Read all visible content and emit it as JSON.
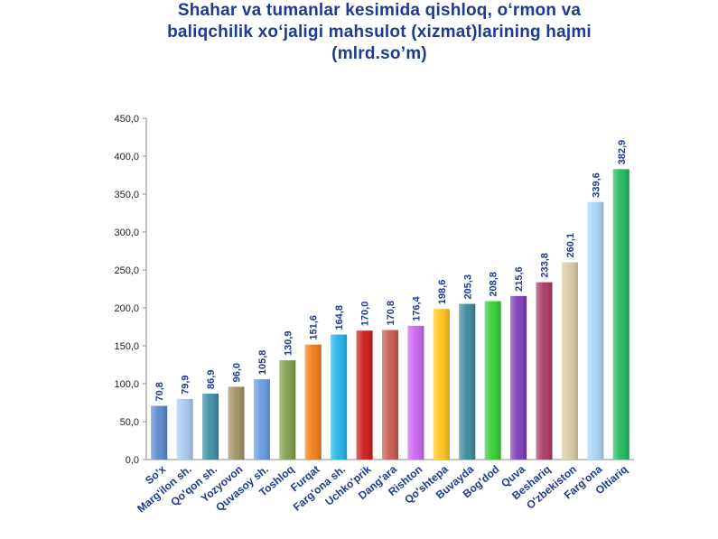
{
  "chart_data": {
    "type": "bar",
    "title_lines": [
      "Shahar va tumanlar kesimida qishloq, o‘rmon va",
      "baliqchilik xo‘jaligi mahsulot (xizmat)larining hajmi",
      "(mlrd.so’m)"
    ],
    "categories": [
      "So'x",
      "Marg'ilon sh.",
      "Qo'qon sh.",
      "Yozyovon",
      "Quvasoy sh.",
      "Toshloq",
      "Furqat",
      "Farg'ona sh.",
      "Uchko'prik",
      "Dang'ara",
      "Rishton",
      "Qo'shtepa",
      "Buvayda",
      "Bog'dod",
      "Quva",
      "Beshariq",
      "O'zbekiston",
      "Farg'ona",
      "Oltiariq"
    ],
    "values": [
      70.8,
      79.9,
      86.9,
      96.0,
      105.8,
      130.9,
      151.6,
      164.8,
      170.0,
      170.8,
      176.4,
      198.6,
      205.3,
      208.8,
      215.6,
      233.8,
      260.1,
      339.6,
      382.9
    ],
    "value_labels": [
      "70,8",
      "79,9",
      "86,9",
      "96,0",
      "105,8",
      "130,9",
      "151,6",
      "164,8",
      "170,0",
      "170,8",
      "176,4",
      "198,6",
      "205,3",
      "208,8",
      "215,6",
      "233,8",
      "260,1",
      "339,6",
      "382,9"
    ],
    "bar_colors": [
      "#5b86c8",
      "#a9c8ee",
      "#3c8ca4",
      "#a09262",
      "#6699dd",
      "#7f9e48",
      "#f07c1a",
      "#1fb3e8",
      "#cc1a1a",
      "#c85a50",
      "#c866ee",
      "#ffc31a",
      "#3a8898",
      "#33cc33",
      "#7a3ab8",
      "#a83864",
      "#d6caa0",
      "#a8d4f8",
      "#1fb85a"
    ],
    "yticks": [
      "0,0",
      "50,0",
      "100,0",
      "150,0",
      "200,0",
      "250,0",
      "300,0",
      "350,0",
      "400,0",
      "450,0"
    ],
    "ylim": [
      0,
      450
    ],
    "xlabel": "",
    "ylabel": "",
    "grid": false,
    "legend": "none"
  }
}
